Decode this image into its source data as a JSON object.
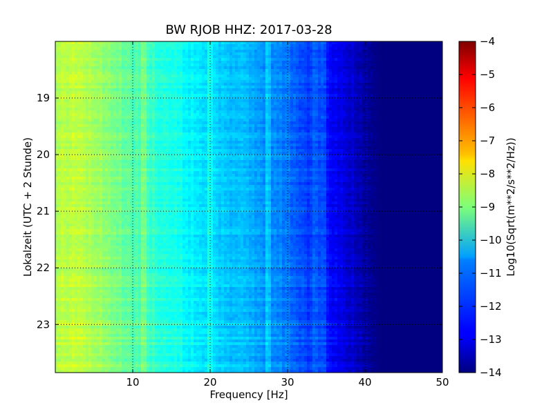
{
  "chart_data": {
    "type": "heatmap",
    "title": "BW RJOB HHZ: 2017-03-28",
    "xlabel": "Frequency [Hz]",
    "ylabel": "Lokalzeit (UTC + 2 Stunde)",
    "xlim": [
      0,
      50
    ],
    "ylim": [
      18.0,
      23.85
    ],
    "y_inverted": true,
    "x_ticks": [
      10,
      20,
      30,
      40,
      50
    ],
    "y_ticks": [
      19,
      20,
      21,
      22,
      23
    ],
    "grid": true,
    "colorbar": {
      "label": "Log10(Sqrt(m**2/s**2/Hz))",
      "range": [
        -14,
        -4
      ],
      "ticks": [
        -4,
        -5,
        -6,
        -7,
        -8,
        -9,
        -10,
        -11,
        -12,
        -13,
        -14
      ],
      "colormap": "jet"
    },
    "spectral_profile": {
      "frequency_hz": [
        0,
        2,
        5,
        10,
        15,
        20,
        25,
        30,
        35,
        38,
        40,
        42,
        50
      ],
      "log10_amplitude": [
        -8.6,
        -8.3,
        -8.6,
        -9.4,
        -10.0,
        -10.6,
        -11.0,
        -11.6,
        -12.6,
        -13.2,
        -13.6,
        -14.0,
        -14.0
      ]
    },
    "persistent_lines_hz": [
      11.5,
      20.0,
      27.5,
      33.5,
      34.5
    ],
    "annotation": "",
    "colors": {
      "frame": "#000000",
      "grid": "#000000",
      "background": "#ffffff"
    }
  }
}
